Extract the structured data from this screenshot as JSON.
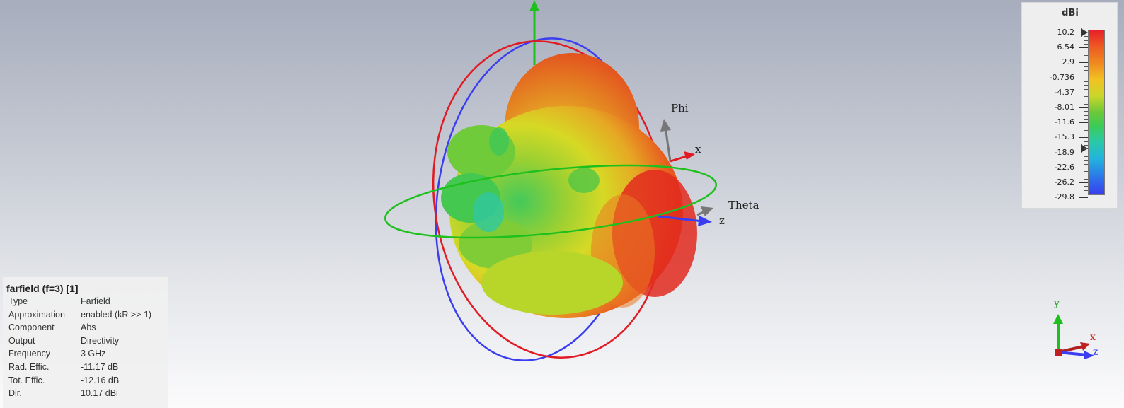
{
  "viewport": {
    "axis_labels": {
      "phi": "Phi",
      "theta": "Theta",
      "x": "x",
      "z": "z"
    },
    "triad": {
      "x": "x",
      "y": "y",
      "z": "z"
    },
    "colors": {
      "red_ring": "#e01b24",
      "blue_ring": "#3a3df0",
      "green_ring": "#1ec01e"
    }
  },
  "legend": {
    "unit": "dBi",
    "max_marker": "10.2",
    "min_marker": "-18.9",
    "ticks": [
      "10.2",
      "6.54",
      "2.9",
      "-0.736",
      "-4.37",
      "-8.01",
      "-11.6",
      "-15.3",
      "-18.9",
      "-22.6",
      "-26.2",
      "-29.8"
    ]
  },
  "info": {
    "title": "farfield (f=3) [1]",
    "rows": [
      {
        "key": "Type",
        "value": "Farfield"
      },
      {
        "key": "Approximation",
        "value": "enabled (kR >> 1)"
      },
      {
        "key": "Component",
        "value": "Abs"
      },
      {
        "key": "Output",
        "value": "Directivity"
      },
      {
        "key": "Frequency",
        "value": "3 GHz"
      },
      {
        "key": "Rad. Effic.",
        "value": "-11.17 dB"
      },
      {
        "key": "Tot. Effic.",
        "value": "-12.16 dB"
      },
      {
        "key": "Dir.",
        "value": "10.17 dBi"
      }
    ]
  }
}
